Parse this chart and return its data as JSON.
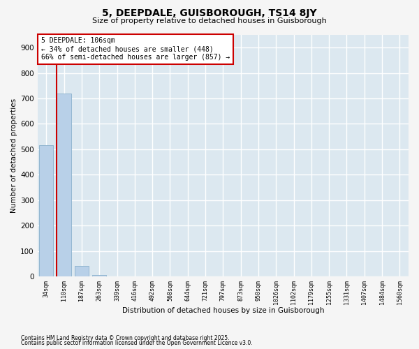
{
  "title_line1": "5, DEEPDALE, GUISBOROUGH, TS14 8JY",
  "title_line2": "Size of property relative to detached houses in Guisborough",
  "xlabel": "Distribution of detached houses by size in Guisborough",
  "ylabel": "Number of detached properties",
  "categories": [
    "34sqm",
    "110sqm",
    "187sqm",
    "263sqm",
    "339sqm",
    "416sqm",
    "492sqm",
    "568sqm",
    "644sqm",
    "721sqm",
    "797sqm",
    "873sqm",
    "950sqm",
    "1026sqm",
    "1102sqm",
    "1179sqm",
    "1255sqm",
    "1331sqm",
    "1407sqm",
    "1484sqm",
    "1560sqm"
  ],
  "values": [
    515,
    720,
    40,
    5,
    1,
    0,
    0,
    0,
    0,
    0,
    0,
    0,
    0,
    0,
    0,
    0,
    0,
    0,
    0,
    0,
    0
  ],
  "bar_color": "#b8d0e8",
  "bar_edgecolor": "#8ab0cc",
  "annotation_text": "5 DEEPDALE: 106sqm\n← 34% of detached houses are smaller (448)\n66% of semi-detached houses are larger (857) →",
  "vline_color": "#cc0000",
  "annotation_box_edgecolor": "#cc0000",
  "annotation_box_facecolor": "#ffffff",
  "ylim_max": 950,
  "background_color": "#dce8f0",
  "grid_color": "#ffffff",
  "fig_background": "#f5f5f5",
  "footnote_line1": "Contains HM Land Registry data © Crown copyright and database right 2025.",
  "footnote_line2": "Contains public sector information licensed under the Open Government Licence v3.0."
}
